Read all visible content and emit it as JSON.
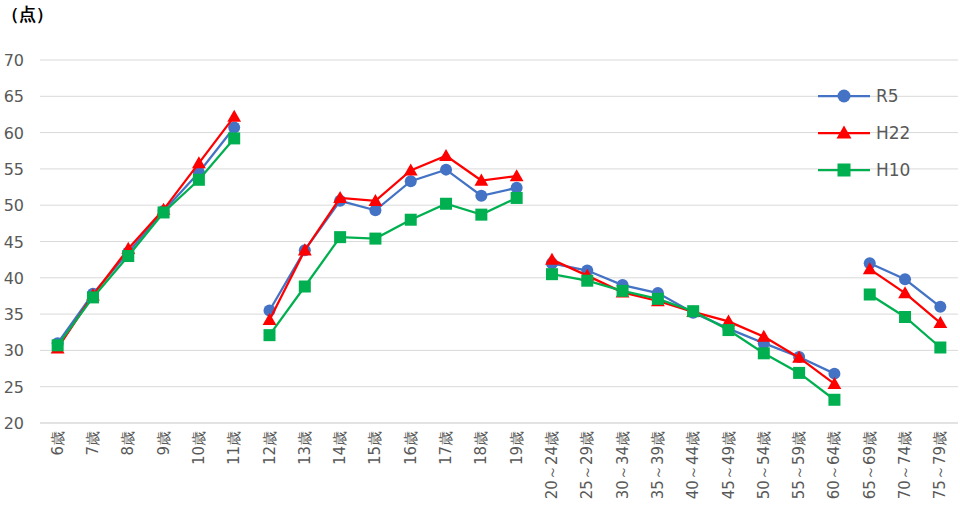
{
  "chart_data": {
    "type": "line",
    "y_label": "（点）",
    "categories": [
      [
        "6歳",
        "7歳",
        "8歳",
        "9歳",
        "10歳",
        "11歳"
      ],
      [
        "12歳",
        "13歳",
        "14歳",
        "15歳",
        "16歳",
        "17歳",
        "18歳",
        "19歳"
      ],
      [
        "20～24歳",
        "25～29歳",
        "30～34歳",
        "35～39歳",
        "40～44歳",
        "45～49歳",
        "50～54歳",
        "55～59歳",
        "60～64歳"
      ],
      [
        "65～69歳",
        "70～74歳",
        "75～79歳"
      ]
    ],
    "series": [
      {
        "name": "R5",
        "color": "#4472c4",
        "marker": "circle",
        "values": [
          [
            31.0,
            37.8,
            43.5,
            49.2,
            54.5,
            60.7
          ],
          [
            35.5,
            43.8,
            50.6,
            49.3,
            53.3,
            54.9,
            51.3,
            52.4
          ],
          [
            42.0,
            41.0,
            39.0,
            37.9,
            35.2,
            33.0,
            31.0,
            29.1,
            26.8
          ],
          [
            42.0,
            39.8,
            36.0
          ]
        ]
      },
      {
        "name": "H22",
        "color": "#ff0000",
        "marker": "triangle",
        "values": [
          [
            30.3,
            37.6,
            44.0,
            49.4,
            55.8,
            62.2
          ],
          [
            34.2,
            43.8,
            51.0,
            50.6,
            54.8,
            56.8,
            53.4,
            54.0
          ],
          [
            42.5,
            40.3,
            38.0,
            36.8,
            35.3,
            34.0,
            31.9,
            29.0,
            25.4
          ],
          [
            41.2,
            37.9,
            33.8
          ]
        ]
      },
      {
        "name": "H10",
        "color": "#00b050",
        "marker": "square",
        "values": [
          [
            30.7,
            37.3,
            43.0,
            49.0,
            53.5,
            59.2
          ],
          [
            32.1,
            38.8,
            45.6,
            45.4,
            48.0,
            50.2,
            48.7,
            51.0
          ],
          [
            40.5,
            39.6,
            38.2,
            37.1,
            35.4,
            32.8,
            29.6,
            26.9,
            23.2
          ],
          [
            37.7,
            34.6,
            30.4
          ]
        ]
      }
    ],
    "ylim": [
      20,
      70
    ],
    "yticks": [
      20,
      25,
      30,
      35,
      40,
      45,
      50,
      55,
      60,
      65,
      70
    ],
    "grid": true,
    "legend": "upper right"
  }
}
